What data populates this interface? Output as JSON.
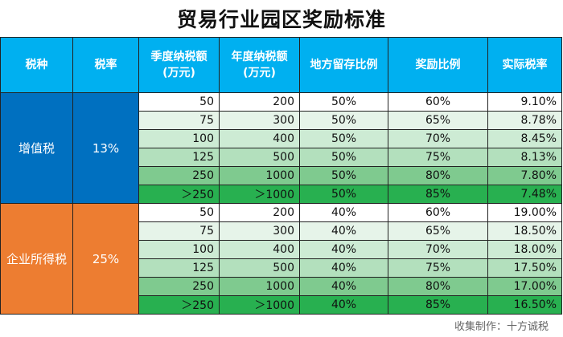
{
  "title": "贸易行业园区奖励标准",
  "headers": {
    "tax_type": "税种",
    "tax_rate": "税率",
    "quarterly_1": "季度纳税额",
    "quarterly_2": "(万元)",
    "annual_1": "年度纳税额",
    "annual_2": "(万元)",
    "local_share": "地方留存比例",
    "reward_ratio": "奖励比例",
    "actual_rate": "实际税率"
  },
  "groups": [
    {
      "tax_type": "增值税",
      "tax_rate": "13%",
      "rows": [
        {
          "quarterly": "50",
          "annual": "200",
          "local": "50%",
          "reward": "60%",
          "actual": "9.10%",
          "shade": "#ffffff"
        },
        {
          "quarterly": "75",
          "annual": "300",
          "local": "50%",
          "reward": "65%",
          "actual": "8.78%",
          "shade": "#e6f4e9"
        },
        {
          "quarterly": "100",
          "annual": "400",
          "local": "50%",
          "reward": "70%",
          "actual": "8.45%",
          "shade": "#cdebd4"
        },
        {
          "quarterly": "125",
          "annual": "500",
          "local": "50%",
          "reward": "75%",
          "actual": "8.13%",
          "shade": "#b3e0bd"
        },
        {
          "quarterly": "250",
          "annual": "1000",
          "local": "50%",
          "reward": "80%",
          "actual": "7.80%",
          "shade": "#7fca8f"
        },
        {
          "quarterly": "＞250",
          "annual": "＞1000",
          "local": "50%",
          "reward": "85%",
          "actual": "7.48%",
          "shade": "#28b050"
        }
      ]
    },
    {
      "tax_type": "企业所得税",
      "tax_rate": "25%",
      "rows": [
        {
          "quarterly": "50",
          "annual": "200",
          "local": "40%",
          "reward": "60%",
          "actual": "19.00%",
          "shade": "#ffffff"
        },
        {
          "quarterly": "75",
          "annual": "300",
          "local": "40%",
          "reward": "65%",
          "actual": "18.50%",
          "shade": "#e6f4e9"
        },
        {
          "quarterly": "100",
          "annual": "400",
          "local": "40%",
          "reward": "70%",
          "actual": "18.00%",
          "shade": "#cdebd4"
        },
        {
          "quarterly": "125",
          "annual": "500",
          "local": "40%",
          "reward": "75%",
          "actual": "17.50%",
          "shade": "#b3e0bd"
        },
        {
          "quarterly": "250",
          "annual": "1000",
          "local": "40%",
          "reward": "80%",
          "actual": "17.00%",
          "shade": "#7fca8f"
        },
        {
          "quarterly": "＞250",
          "annual": "＞1000",
          "local": "40%",
          "reward": "85%",
          "actual": "16.50%",
          "shade": "#28b050"
        }
      ]
    }
  ],
  "colors": {
    "header_bg": "#00b0f0",
    "vat_bg": "#0070c0",
    "cit_bg": "#ed7d31"
  },
  "footer": "收集制作：十方诚税"
}
